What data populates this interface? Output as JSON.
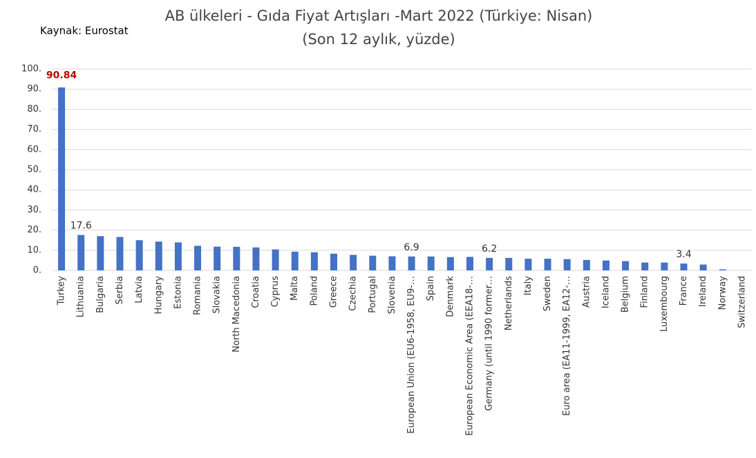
{
  "chart_data": {
    "type": "bar",
    "title": "AB ülkeleri - Gıda Fiyat Artışları -Mart 2022 (Türkiye: Nisan)",
    "subtitle": "(Son 12 aylık, yüzde)",
    "source": "Kaynak: Eurostat",
    "categories": [
      "Turkey",
      "Lithuania",
      "Bulgaria",
      "Serbia",
      "Latvia",
      "Hungary",
      "Estonia",
      "Romania",
      "Slovakia",
      "North Macedonia",
      "Croatia",
      "Cyprus",
      "Malta",
      "Poland",
      "Greece",
      "Czechia",
      "Portugal",
      "Slovenia",
      "European Union (EU6-1958, EU9-…",
      "Spain",
      "Denmark",
      "European Economic Area (EEA18-…",
      "Germany (until 1990 former…",
      "Netherlands",
      "Italy",
      "Sweden",
      "Euro area (EA11-1999, EA12-…",
      "Austria",
      "Iceland",
      "Belgium",
      "Finland",
      "Luxembourg",
      "France",
      "Ireland",
      "Norway",
      "Switzerland"
    ],
    "values": [
      90.84,
      17.6,
      17.0,
      16.6,
      15.0,
      14.3,
      13.9,
      12.2,
      11.8,
      11.7,
      11.4,
      10.4,
      9.3,
      9.0,
      8.3,
      7.7,
      7.3,
      7.0,
      6.9,
      6.9,
      6.6,
      6.7,
      6.2,
      6.2,
      5.8,
      5.8,
      5.6,
      5.2,
      4.9,
      4.6,
      3.9,
      3.9,
      3.4,
      2.9,
      0.5,
      0
    ],
    "value_labels": [
      "90.84",
      "17.6",
      null,
      null,
      null,
      null,
      null,
      null,
      null,
      null,
      null,
      null,
      null,
      null,
      null,
      null,
      null,
      null,
      "6.9",
      null,
      null,
      null,
      "6.2",
      null,
      null,
      null,
      null,
      null,
      null,
      null,
      null,
      null,
      "3.4",
      null,
      null,
      null
    ],
    "value_label_colors": [
      "#c00000",
      "#333333",
      null,
      null,
      null,
      null,
      null,
      null,
      null,
      null,
      null,
      null,
      null,
      null,
      null,
      null,
      null,
      null,
      "#333333",
      null,
      null,
      null,
      "#333333",
      null,
      null,
      null,
      null,
      null,
      null,
      null,
      null,
      null,
      "#333333",
      null,
      null,
      null
    ],
    "color": "#4472c4",
    "ylim": [
      0,
      100
    ],
    "yticks": [
      {
        "value": 0,
        "label": "0."
      },
      {
        "value": 10,
        "label": "10."
      },
      {
        "value": 20,
        "label": "20."
      },
      {
        "value": 30,
        "label": "30."
      },
      {
        "value": 40,
        "label": "40."
      },
      {
        "value": 50,
        "label": "50."
      },
      {
        "value": 60,
        "label": "60."
      },
      {
        "value": 70,
        "label": "70."
      },
      {
        "value": 80,
        "label": "80."
      },
      {
        "value": 90,
        "label": "90."
      },
      {
        "value": 100,
        "label": "100."
      }
    ],
    "grid": true
  }
}
